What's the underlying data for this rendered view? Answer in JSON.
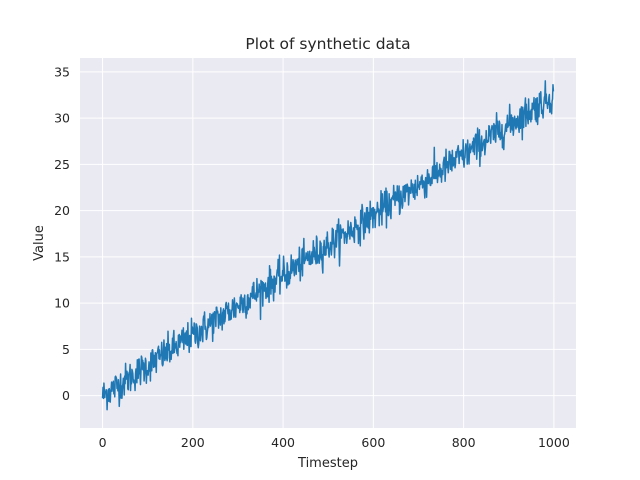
{
  "chart_data": {
    "type": "line",
    "title": "Plot of synthetic data",
    "xlabel": "Timestep",
    "ylabel": "Value",
    "xlim": [
      -50,
      1049
    ],
    "ylim": [
      -3.5,
      36.5
    ],
    "xticks": [
      0,
      200,
      400,
      600,
      800,
      1000
    ],
    "yticks": [
      0,
      5,
      10,
      15,
      20,
      25,
      30,
      35
    ],
    "grid": true,
    "background_color": "#eaeaf2",
    "grid_color": "#ffffff",
    "series": [
      {
        "color": "#1f77b4",
        "trend": {
          "start": 0,
          "slope": 0.0325
        },
        "noise_std": 0.9,
        "n_points": 1000
      }
    ]
  }
}
